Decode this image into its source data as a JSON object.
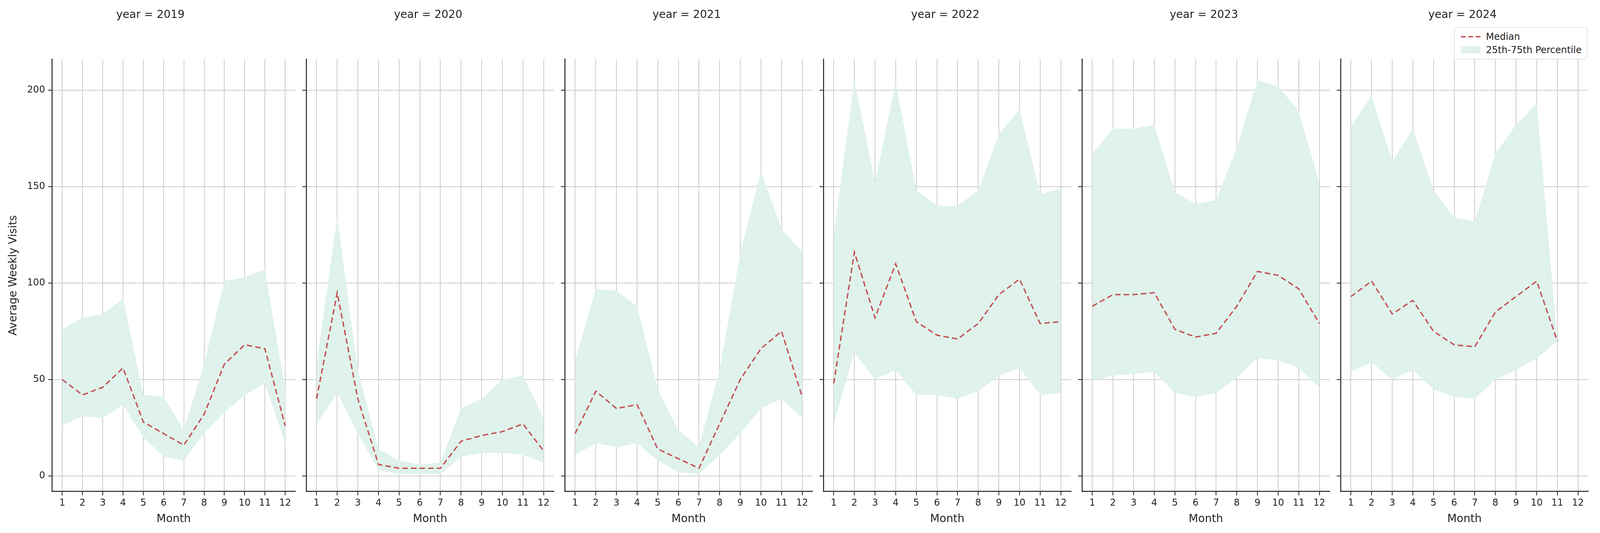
{
  "chart_data": [
    {
      "type": "line",
      "title": "year = 2019",
      "x_label": "Month",
      "y_label": "Average Weekly Visits",
      "categories": [
        1,
        2,
        3,
        4,
        5,
        6,
        7,
        8,
        9,
        10,
        11,
        12
      ],
      "ylim": [
        -8,
        216
      ],
      "yticks": [
        0,
        50,
        100,
        150,
        200
      ],
      "grid": true,
      "series": [
        {
          "name": "Median",
          "type": "line",
          "line_style": "dashed",
          "color": "#c44e52",
          "values": [
            50,
            42,
            46,
            56,
            28,
            22,
            16,
            32,
            58,
            68,
            66,
            26
          ]
        },
        {
          "name": "25th-75th Percentile",
          "type": "area",
          "color": "#dff2ec",
          "lower": [
            26,
            31,
            30,
            37,
            20,
            10,
            8,
            22,
            33,
            42,
            48,
            17
          ],
          "upper": [
            76,
            82,
            84,
            92,
            42,
            41,
            24,
            58,
            101,
            103,
            107,
            45
          ]
        }
      ]
    },
    {
      "type": "line",
      "title": "year = 2020",
      "x_label": "Month",
      "tick_labels": "x",
      "categories": [
        1,
        2,
        3,
        4,
        5,
        6,
        7,
        8,
        9,
        10,
        11,
        12
      ],
      "ylim": [
        -8,
        216
      ],
      "yticks": [
        0,
        50,
        100,
        150,
        200
      ],
      "grid": true,
      "series": [
        {
          "name": "Median",
          "type": "line",
          "line_style": "dashed",
          "color": "#c44e52",
          "values": [
            40,
            95,
            40,
            6,
            4,
            4,
            4,
            18,
            21,
            23,
            27,
            13
          ]
        },
        {
          "name": "25th-75th Percentile",
          "type": "area",
          "color": "#dff2ec",
          "lower": [
            27,
            43,
            22,
            3,
            1,
            1,
            1,
            10,
            12,
            12,
            11,
            7
          ],
          "upper": [
            58,
            134,
            55,
            14,
            8,
            6,
            7,
            35,
            40,
            50,
            52,
            30
          ]
        }
      ]
    },
    {
      "type": "line",
      "title": "year = 2021",
      "x_label": "Month",
      "tick_labels": "x",
      "categories": [
        1,
        2,
        3,
        4,
        5,
        6,
        7,
        8,
        9,
        10,
        11,
        12
      ],
      "ylim": [
        -8,
        216
      ],
      "yticks": [
        0,
        50,
        100,
        150,
        200
      ],
      "grid": true,
      "series": [
        {
          "name": "Median",
          "type": "line",
          "line_style": "dashed",
          "color": "#c44e52",
          "values": [
            22,
            44,
            35,
            37,
            14,
            9,
            4,
            27,
            50,
            66,
            75,
            41
          ]
        },
        {
          "name": "25th-75th Percentile",
          "type": "area",
          "color": "#dff2ec",
          "lower": [
            11,
            17,
            15,
            17,
            8,
            2,
            1,
            11,
            22,
            35,
            40,
            30
          ],
          "upper": [
            60,
            97,
            96,
            88,
            45,
            24,
            15,
            55,
            115,
            158,
            128,
            116
          ]
        }
      ]
    },
    {
      "type": "line",
      "title": "year = 2022",
      "x_label": "Month",
      "tick_labels": "x",
      "categories": [
        1,
        2,
        3,
        4,
        5,
        6,
        7,
        8,
        9,
        10,
        11,
        12
      ],
      "ylim": [
        -8,
        216
      ],
      "yticks": [
        0,
        50,
        100,
        150,
        200
      ],
      "grid": true,
      "series": [
        {
          "name": "Median",
          "type": "line",
          "line_style": "dashed",
          "color": "#c44e52",
          "values": [
            48,
            116,
            82,
            110,
            80,
            73,
            71,
            79,
            94,
            102,
            79,
            80
          ]
        },
        {
          "name": "25th-75th Percentile",
          "type": "area",
          "color": "#dff2ec",
          "lower": [
            27,
            64,
            50,
            55,
            42,
            42,
            40,
            44,
            52,
            56,
            42,
            43
          ],
          "upper": [
            125,
            205,
            152,
            204,
            148,
            140,
            140,
            148,
            177,
            190,
            146,
            149
          ]
        }
      ]
    },
    {
      "type": "line",
      "title": "year = 2023",
      "x_label": "Month",
      "tick_labels": "x",
      "categories": [
        1,
        2,
        3,
        4,
        5,
        6,
        7,
        8,
        9,
        10,
        11,
        12
      ],
      "ylim": [
        -8,
        216
      ],
      "yticks": [
        0,
        50,
        100,
        150,
        200
      ],
      "grid": true,
      "series": [
        {
          "name": "Median",
          "type": "line",
          "line_style": "dashed",
          "color": "#c44e52",
          "values": [
            88,
            94,
            94,
            95,
            76,
            72,
            74,
            88,
            106,
            104,
            97,
            79
          ]
        },
        {
          "name": "25th-75th Percentile",
          "type": "area",
          "color": "#dff2ec",
          "lower": [
            49,
            52,
            53,
            54,
            43,
            41,
            43,
            51,
            61,
            60,
            56,
            46
          ],
          "upper": [
            167,
            180,
            180,
            182,
            147,
            141,
            143,
            170,
            205,
            202,
            189,
            152
          ]
        }
      ]
    },
    {
      "type": "line",
      "title": "year = 2024",
      "x_label": "Month",
      "tick_labels": "x",
      "legend": "upper right",
      "categories": [
        1,
        2,
        3,
        4,
        5,
        6,
        7,
        8,
        9,
        10,
        11,
        12
      ],
      "ylim": [
        -8,
        216
      ],
      "yticks": [
        0,
        50,
        100,
        150,
        200
      ],
      "grid": true,
      "series": [
        {
          "name": "Median",
          "type": "line",
          "line_style": "dashed",
          "color": "#c44e52",
          "values": [
            93,
            101,
            84,
            91,
            75,
            68,
            67,
            85,
            93,
            101,
            70,
            null
          ]
        },
        {
          "name": "25th-75th Percentile",
          "type": "area",
          "color": "#dff2ec",
          "lower": [
            54,
            59,
            50,
            55,
            45,
            41,
            40,
            50,
            55,
            61,
            70,
            null
          ],
          "upper": [
            181,
            197,
            163,
            180,
            148,
            134,
            132,
            167,
            182,
            193,
            70,
            null
          ]
        }
      ]
    }
  ]
}
